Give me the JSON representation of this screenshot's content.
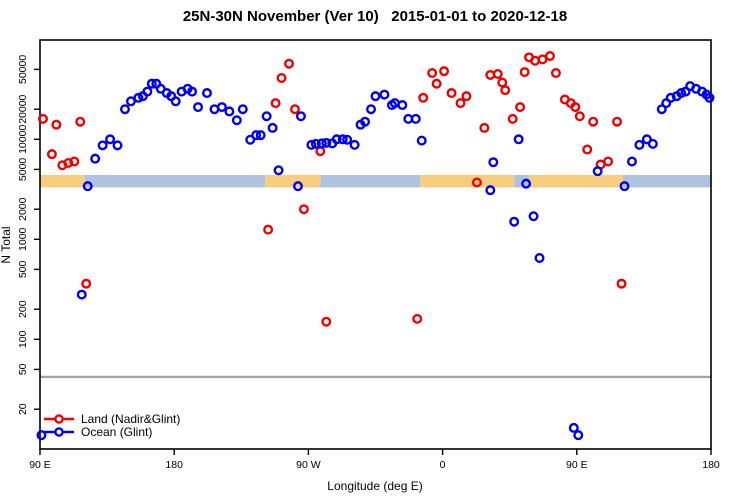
{
  "figure": {
    "title": "25N-30N November (Ver 10)   2015-01-01 to 2020-12-18"
  },
  "legend": {
    "items": [
      {
        "label": "Land (Nadir&Glint)",
        "color": "#ee0000"
      },
      {
        "label": "Ocean (Glint)",
        "color": "#0000ee"
      }
    ]
  },
  "chart_data": {
    "type": "scatter",
    "title": "25N-30N November (Ver 10)   2015-01-01 to 2020-12-18",
    "xlabel": "Longitude (deg E)",
    "ylabel": "N Total",
    "legend_position": "bottom-left",
    "x_axis": {
      "range": [
        90,
        540
      ],
      "ticks": [
        90,
        180,
        270,
        360,
        450,
        540
      ],
      "tick_labels": [
        "90 E",
        "180",
        "90 W",
        "0",
        "90 E",
        "180"
      ]
    },
    "y_axis": {
      "scale": "log",
      "range": [
        8,
        100000
      ],
      "ticks": [
        20,
        50,
        100,
        200,
        500,
        1000,
        2000,
        5000,
        10000,
        20000,
        50000
      ],
      "tick_labels": [
        "20",
        "50",
        "100",
        "200",
        "500",
        "1000",
        "2000",
        "5000",
        "10000",
        "20000",
        "50000"
      ]
    },
    "reference_line": {
      "value": 42,
      "color": "#a3a3a3"
    },
    "surface_band": {
      "value_span": [
        3300,
        4400
      ],
      "land_color": "#f8ce7e",
      "ocean_color": "#afc3de",
      "segments": [
        {
          "from": 90,
          "to": 120,
          "surface": "land"
        },
        {
          "from": 120,
          "to": 241,
          "surface": "ocean"
        },
        {
          "from": 241,
          "to": 278,
          "surface": "land"
        },
        {
          "from": 278,
          "to": 345,
          "surface": "ocean"
        },
        {
          "from": 345,
          "to": 408,
          "surface": "land"
        },
        {
          "from": 408,
          "to": 418,
          "surface": "ocean"
        },
        {
          "from": 418,
          "to": 481,
          "surface": "land"
        },
        {
          "from": 481,
          "to": 540,
          "surface": "ocean"
        }
      ]
    },
    "series": [
      {
        "name": "Land (Nadir&Glint)",
        "color": "#ee0000",
        "points": [
          [
            92,
            16000
          ],
          [
            101,
            14000
          ],
          [
            117,
            15000
          ],
          [
            98,
            7100
          ],
          [
            105,
            5500
          ],
          [
            109,
            5800
          ],
          [
            113,
            6000
          ],
          [
            121,
            360
          ],
          [
            257,
            57000
          ],
          [
            252,
            41000
          ],
          [
            248,
            23000
          ],
          [
            261,
            20000
          ],
          [
            278,
            7600
          ],
          [
            267,
            2000
          ],
          [
            243,
            1250
          ],
          [
            282,
            150
          ],
          [
            343,
            160
          ],
          [
            347,
            26000
          ],
          [
            353,
            46000
          ],
          [
            356,
            36000
          ],
          [
            361,
            48000
          ],
          [
            366,
            29000
          ],
          [
            372,
            23000
          ],
          [
            376,
            27000
          ],
          [
            388,
            13000
          ],
          [
            392,
            44000
          ],
          [
            397,
            45000
          ],
          [
            400,
            37000
          ],
          [
            402,
            31000
          ],
          [
            407,
            16000
          ],
          [
            412,
            21000
          ],
          [
            383,
            3700
          ],
          [
            415,
            47000
          ],
          [
            418,
            66000
          ],
          [
            422,
            61000
          ],
          [
            427,
            63000
          ],
          [
            432,
            68000
          ],
          [
            436,
            46000
          ],
          [
            442,
            25000
          ],
          [
            446,
            23000
          ],
          [
            449,
            21000
          ],
          [
            452,
            17000
          ],
          [
            461,
            15000
          ],
          [
            477,
            15000
          ],
          [
            457,
            7900
          ],
          [
            466,
            5600
          ],
          [
            471,
            6000
          ],
          [
            480,
            360
          ]
        ]
      },
      {
        "name": "Ocean (Glint)",
        "color": "#0000ee",
        "points": [
          [
            122,
            3400
          ],
          [
            127,
            6400
          ],
          [
            132,
            8700
          ],
          [
            137,
            10000
          ],
          [
            142,
            8700
          ],
          [
            147,
            20000
          ],
          [
            151,
            24000
          ],
          [
            156,
            26000
          ],
          [
            159,
            27000
          ],
          [
            162,
            30000
          ],
          [
            165,
            36000
          ],
          [
            168,
            36000
          ],
          [
            171,
            32000
          ],
          [
            175,
            29000
          ],
          [
            178,
            27000
          ],
          [
            181,
            24000
          ],
          [
            185,
            30000
          ],
          [
            189,
            32000
          ],
          [
            192,
            30000
          ],
          [
            196,
            21000
          ],
          [
            118,
            280
          ],
          [
            202,
            29000
          ],
          [
            207,
            20000
          ],
          [
            212,
            21000
          ],
          [
            217,
            19000
          ],
          [
            222,
            15500
          ],
          [
            226,
            20000
          ],
          [
            231,
            9900
          ],
          [
            235,
            11000
          ],
          [
            238,
            11000
          ],
          [
            242,
            17000
          ],
          [
            246,
            13000
          ],
          [
            265,
            17000
          ],
          [
            272,
            8800
          ],
          [
            275,
            9000
          ],
          [
            279,
            9100
          ],
          [
            282,
            9200
          ],
          [
            286,
            9100
          ],
          [
            289,
            10000
          ],
          [
            293,
            10000
          ],
          [
            296,
            9900
          ],
          [
            301,
            8800
          ],
          [
            305,
            14000
          ],
          [
            308,
            15000
          ],
          [
            250,
            4900
          ],
          [
            263,
            3400
          ],
          [
            312,
            20000
          ],
          [
            315,
            27000
          ],
          [
            321,
            28000
          ],
          [
            326,
            22000
          ],
          [
            328,
            23000
          ],
          [
            333,
            22000
          ],
          [
            337,
            16000
          ],
          [
            342,
            16000
          ],
          [
            346,
            9700
          ],
          [
            411,
            10000
          ],
          [
            394,
            5900
          ],
          [
            392,
            3100
          ],
          [
            416,
            3600
          ],
          [
            408,
            1500
          ],
          [
            421,
            1700
          ],
          [
            425,
            650
          ],
          [
            482,
            3400
          ],
          [
            464,
            4800
          ],
          [
            487,
            6000
          ],
          [
            492,
            8800
          ],
          [
            497,
            10000
          ],
          [
            501,
            9000
          ],
          [
            507,
            20000
          ],
          [
            510,
            23000
          ],
          [
            513,
            26000
          ],
          [
            517,
            27000
          ],
          [
            520,
            29000
          ],
          [
            523,
            30000
          ],
          [
            526,
            34000
          ],
          [
            530,
            32000
          ],
          [
            534,
            30000
          ],
          [
            537,
            28000
          ],
          [
            539,
            26000
          ],
          [
            448,
            13
          ],
          [
            451,
            11
          ],
          [
            91,
            11
          ]
        ]
      }
    ]
  }
}
